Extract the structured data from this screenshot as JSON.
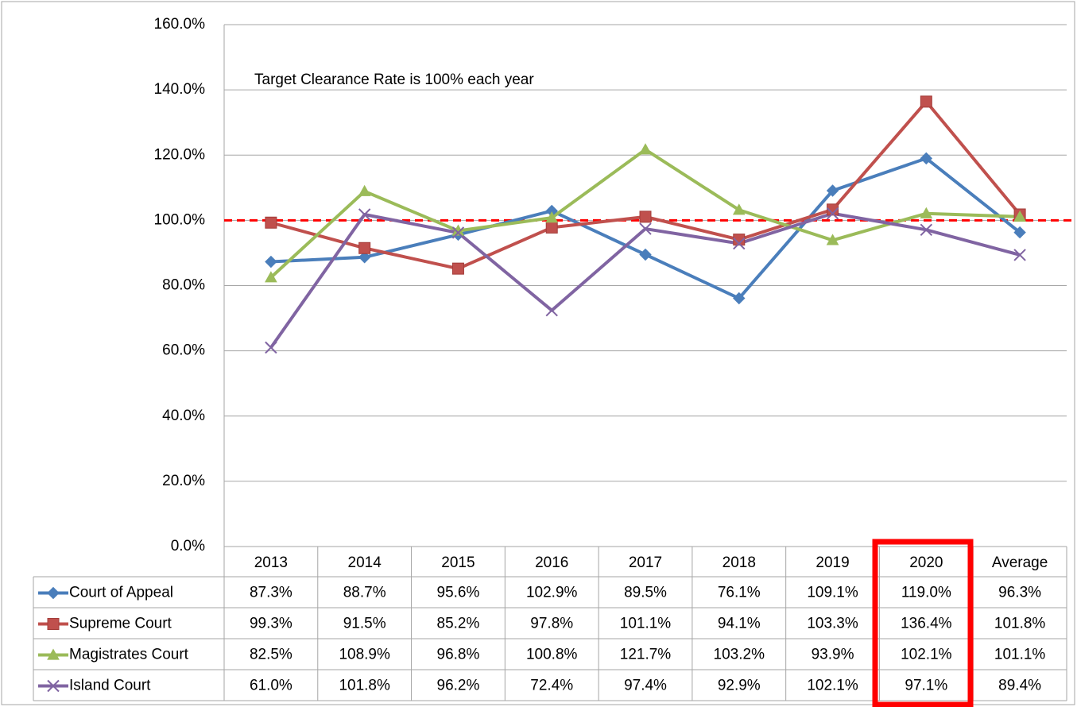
{
  "chart_data": {
    "type": "line",
    "annotation": "Target Clearance Rate is 100% each year",
    "categories": [
      "2013",
      "2014",
      "2015",
      "2016",
      "2017",
      "2018",
      "2019",
      "2020",
      "Average"
    ],
    "series": [
      {
        "name": "Court of Appeal",
        "color": "#4a7ebb",
        "marker": "diamond",
        "values": [
          87.3,
          88.7,
          95.6,
          102.9,
          89.5,
          76.1,
          109.1,
          119.0,
          96.3
        ],
        "value_labels": [
          "87.3%",
          "88.7%",
          "95.6%",
          "102.9%",
          "89.5%",
          "76.1%",
          "109.1%",
          "119.0%",
          "96.3%"
        ]
      },
      {
        "name": "Supreme Court",
        "color": "#c0504d",
        "marker": "square",
        "values": [
          99.3,
          91.5,
          85.2,
          97.8,
          101.1,
          94.1,
          103.3,
          136.4,
          101.8
        ],
        "value_labels": [
          "99.3%",
          "91.5%",
          "85.2%",
          "97.8%",
          "101.1%",
          "94.1%",
          "103.3%",
          "136.4%",
          "101.8%"
        ]
      },
      {
        "name": "Magistrates Court",
        "color": "#9bbb59",
        "marker": "triangle",
        "values": [
          82.5,
          108.9,
          96.8,
          100.8,
          121.7,
          103.2,
          93.9,
          102.1,
          101.1
        ],
        "value_labels": [
          "82.5%",
          "108.9%",
          "96.8%",
          "100.8%",
          "121.7%",
          "103.2%",
          "93.9%",
          "102.1%",
          "101.1%"
        ]
      },
      {
        "name": "Island Court",
        "color": "#8064a2",
        "marker": "x",
        "values": [
          61.0,
          101.8,
          96.2,
          72.4,
          97.4,
          92.9,
          102.1,
          97.1,
          89.4
        ],
        "value_labels": [
          "61.0%",
          "101.8%",
          "96.2%",
          "72.4%",
          "97.4%",
          "92.9%",
          "102.1%",
          "97.1%",
          "89.4%"
        ]
      }
    ],
    "target_line": {
      "value": 100,
      "color": "#ff0000"
    },
    "ylim": [
      0,
      160
    ],
    "yticks": [
      {
        "value": 0,
        "label": "0.0%"
      },
      {
        "value": 20,
        "label": "20.0%"
      },
      {
        "value": 40,
        "label": "40.0%"
      },
      {
        "value": 60,
        "label": "60.0%"
      },
      {
        "value": 80,
        "label": "80.0%"
      },
      {
        "value": 100,
        "label": "100.0%"
      },
      {
        "value": 120,
        "label": "120.0%"
      },
      {
        "value": 140,
        "label": "140.0%"
      },
      {
        "value": 160,
        "label": "160.0%"
      }
    ],
    "grid": true
  }
}
